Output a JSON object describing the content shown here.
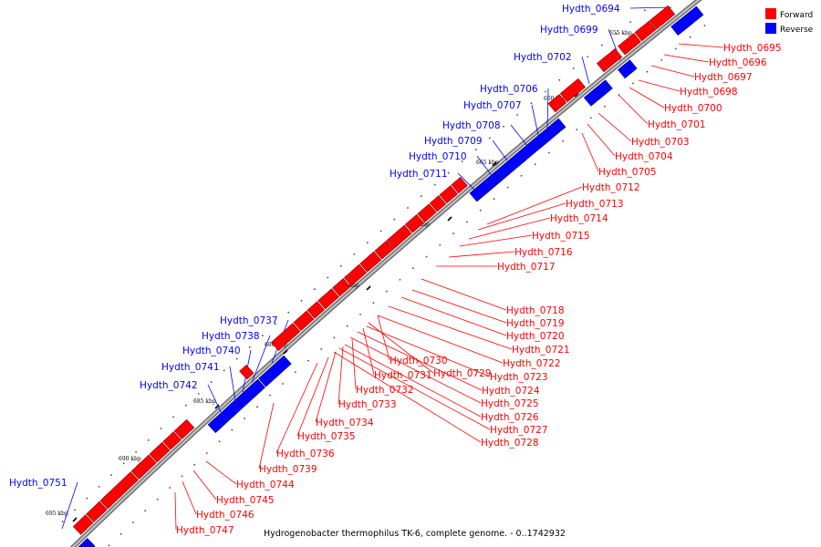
{
  "legend": {
    "forward": {
      "label": "Forward",
      "color": "#ff0000"
    },
    "reverse": {
      "label": "Reverse",
      "color": "#0000ff"
    }
  },
  "caption": "Hydrogenobacter thermophilus TK-6, complete genome. - 0..1742932",
  "ticks": [
    "655 kbp",
    "660 kbp",
    "665 kbp",
    "670 kbp",
    "675 kbp",
    "680 kbp",
    "685 kbp",
    "690 kbp",
    "695 kbp"
  ],
  "reverse_genes": [
    "Hydth_0694",
    "Hydth_0699",
    "Hydth_0702",
    "Hydth_0706",
    "Hydth_0707",
    "Hydth_0708",
    "Hydth_0709",
    "Hydth_0710",
    "Hydth_0711",
    "Hydth_0737",
    "Hydth_0738",
    "Hydth_0740",
    "Hydth_0741",
    "Hydth_0742",
    "Hydth_0751"
  ],
  "forward_genes": [
    "Hydth_0695",
    "Hydth_0696",
    "Hydth_0697",
    "Hydth_0698",
    "Hydth_0700",
    "Hydth_0701",
    "Hydth_0703",
    "Hydth_0704",
    "Hydth_0705",
    "Hydth_0712",
    "Hydth_0713",
    "Hydth_0714",
    "Hydth_0715",
    "Hydth_0716",
    "Hydth_0717",
    "Hydth_0718",
    "Hydth_0719",
    "Hydth_0720",
    "Hydth_0721",
    "Hydth_0722",
    "Hydth_0723",
    "Hydth_0724",
    "Hydth_0725",
    "Hydth_0726",
    "Hydth_0727",
    "Hydth_0728",
    "Hydth_0729",
    "Hydth_0730",
    "Hydth_0731",
    "Hydth_0732",
    "Hydth_0733",
    "Hydth_0734",
    "Hydth_0735",
    "Hydth_0736",
    "Hydth_0739",
    "Hydth_0744",
    "Hydth_0745",
    "Hydth_0746",
    "Hydth_0747"
  ]
}
